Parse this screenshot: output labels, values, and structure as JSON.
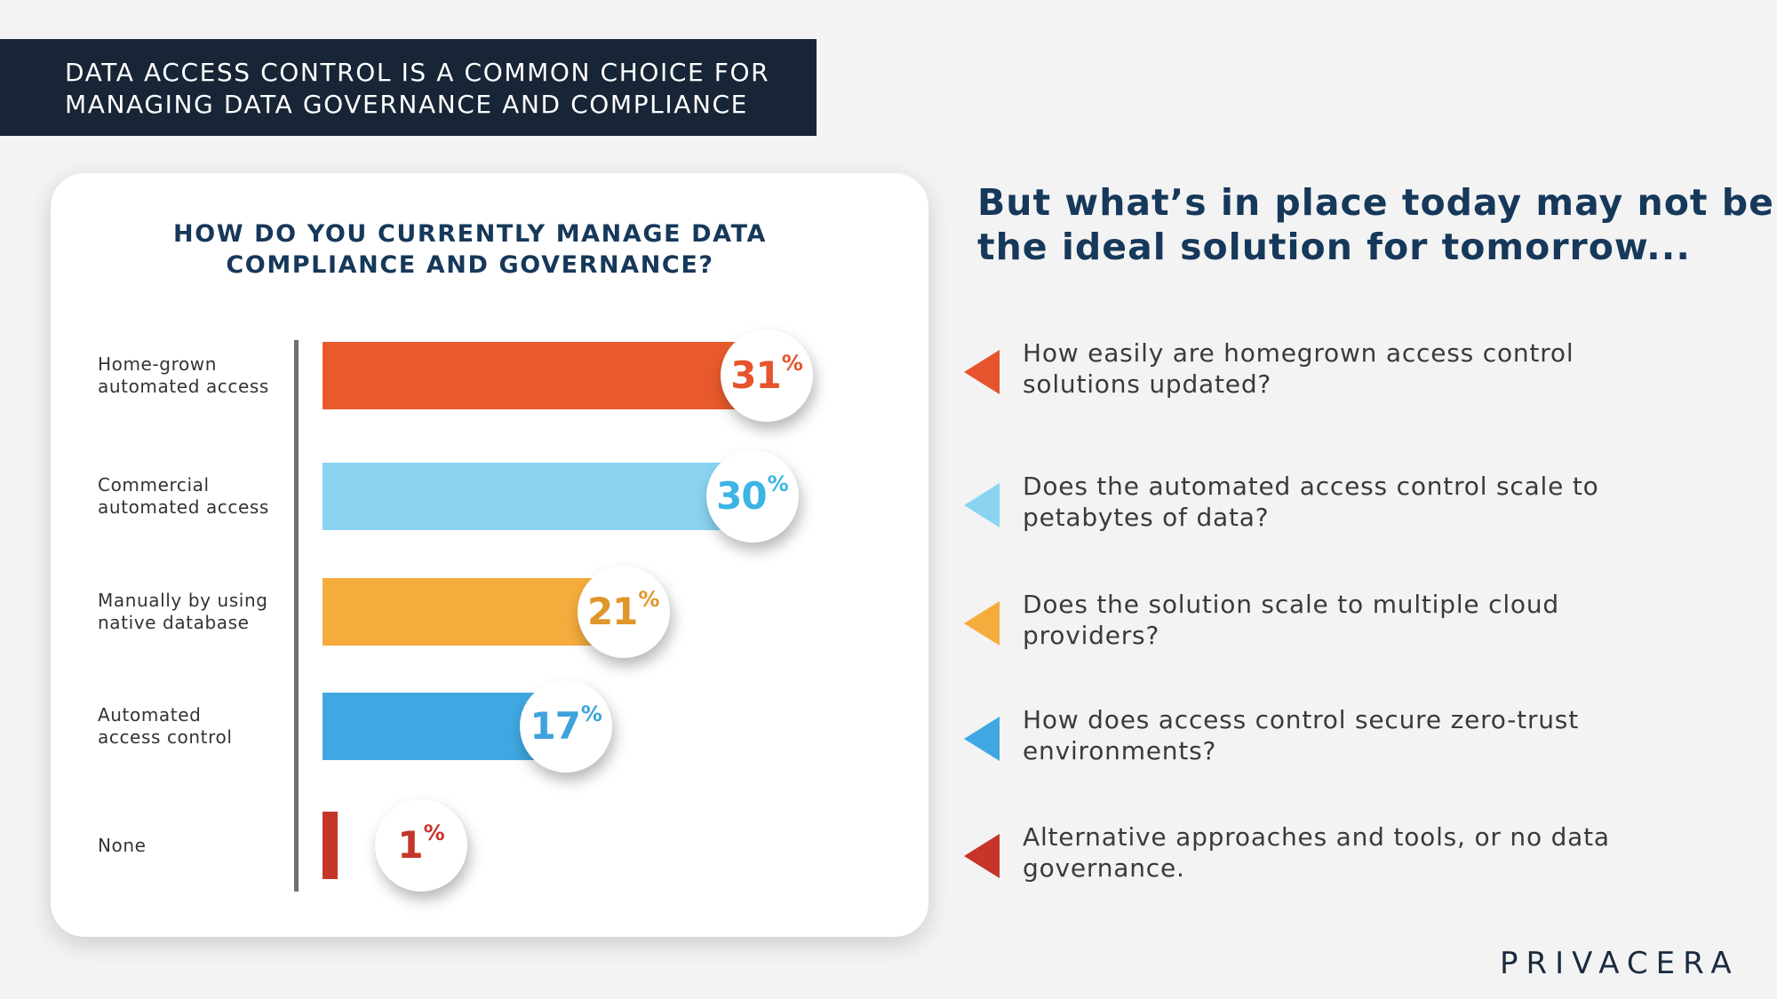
{
  "banner": {
    "line1": "DATA ACCESS CONTROL IS A COMMON CHOICE FOR",
    "line2": "MANAGING DATA GOVERNANCE AND COMPLIANCE"
  },
  "chart_data": {
    "type": "bar",
    "orientation": "horizontal",
    "title_lines": [
      "HOW DO YOU CURRENTLY MANAGE DATA",
      "COMPLIANCE AND GOVERNANCE?"
    ],
    "unit": "%",
    "categories": [
      {
        "lines": [
          "Home-grown",
          "automated access"
        ],
        "value": 31,
        "color": "#e85a2c",
        "label_color": "#e5542c"
      },
      {
        "lines": [
          "Commercial",
          "automated access"
        ],
        "value": 30,
        "color": "#8ad4f2",
        "label_color": "#3cb4e4"
      },
      {
        "lines": [
          "Manually by using",
          "native database"
        ],
        "value": 21,
        "color": "#f5ac3d",
        "label_color": "#e0962a"
      },
      {
        "lines": [
          "Automated",
          "access control"
        ],
        "value": 17,
        "color": "#3fa8e2",
        "label_color": "#3fa2dc"
      },
      {
        "lines": [
          "None"
        ],
        "value": 1,
        "color": "#c6352a",
        "label_color": "#c6352a"
      }
    ],
    "value_max": 31
  },
  "right": {
    "heading_lines": [
      "But what’s in place today may not be",
      "the ideal solution for tomorrow..."
    ],
    "questions": [
      {
        "lines": [
          "How easily are homegrown access control",
          "solutions updated?"
        ],
        "arrow_color": "#e5542c"
      },
      {
        "lines": [
          "Does the automated access control scale to",
          "petabytes of data?"
        ],
        "arrow_color": "#8ad4f2"
      },
      {
        "lines": [
          "Does the solution scale to multiple cloud",
          "providers?"
        ],
        "arrow_color": "#f5ac3d"
      },
      {
        "lines": [
          "How does access control secure zero-trust",
          "environments?"
        ],
        "arrow_color": "#3fa8e2"
      },
      {
        "lines": [
          "Alternative approaches and tools, or no data",
          "governance."
        ],
        "arrow_color": "#c6352a"
      }
    ]
  },
  "logo": {
    "text": "PRIVACERA"
  }
}
